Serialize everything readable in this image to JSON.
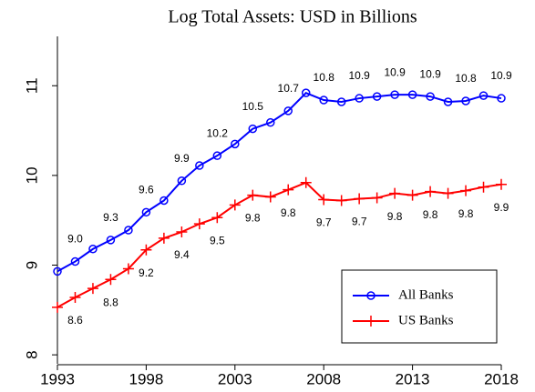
{
  "chart_data": {
    "type": "line",
    "title": "Log Total Assets: USD in Billions",
    "x": [
      1993,
      1994,
      1995,
      1996,
      1997,
      1998,
      1999,
      2000,
      2001,
      2002,
      2003,
      2004,
      2005,
      2006,
      2007,
      2008,
      2009,
      2010,
      2011,
      2012,
      2013,
      2014,
      2015,
      2016,
      2017,
      2018
    ],
    "series": [
      {
        "name": "All Banks",
        "color": "#0000ff",
        "marker": "circle",
        "values": [
          8.93,
          9.04,
          9.18,
          9.28,
          9.39,
          9.59,
          9.72,
          9.94,
          10.11,
          10.22,
          10.35,
          10.52,
          10.59,
          10.72,
          10.92,
          10.84,
          10.82,
          10.86,
          10.88,
          10.9,
          10.9,
          10.88,
          10.82,
          10.83,
          10.89,
          10.86
        ],
        "value_labels": [
          null,
          "9.0",
          null,
          "9.3",
          null,
          "9.6",
          null,
          "9.9",
          null,
          "10.2",
          null,
          "10.5",
          null,
          "10.7",
          null,
          "10.8",
          null,
          "10.9",
          null,
          "10.9",
          null,
          "10.9",
          null,
          "10.8",
          null,
          "10.9"
        ]
      },
      {
        "name": "US Banks",
        "color": "#ff0000",
        "marker": "plus",
        "values": [
          8.53,
          8.64,
          8.74,
          8.84,
          8.96,
          9.17,
          9.3,
          9.37,
          9.46,
          9.53,
          9.67,
          9.78,
          9.76,
          9.84,
          9.92,
          9.73,
          9.72,
          9.74,
          9.75,
          9.8,
          9.78,
          9.82,
          9.8,
          9.83,
          9.87,
          9.9
        ],
        "value_labels": [
          null,
          "8.6",
          null,
          "8.8",
          null,
          "9.2",
          null,
          "9.4",
          null,
          "9.5",
          null,
          "9.8",
          null,
          "9.8",
          null,
          "9.7",
          null,
          "9.7",
          null,
          "9.8",
          null,
          "9.8",
          null,
          "9.8",
          null,
          "9.9"
        ]
      }
    ],
    "xlim": [
      1993,
      2018
    ],
    "xticks": [
      1993,
      1998,
      2003,
      2008,
      2013,
      2018
    ],
    "ylim": [
      7.9,
      11.55
    ],
    "yticks": [
      8,
      9,
      10,
      11
    ],
    "legend": "lower right"
  }
}
